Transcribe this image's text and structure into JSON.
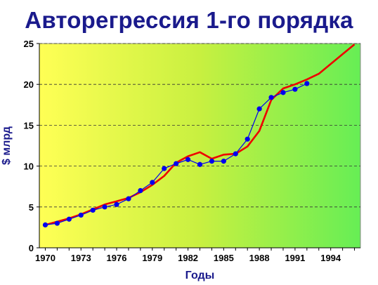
{
  "chart_data": {
    "type": "line",
    "title": "Авторегрессия 1-го порядка",
    "xlabel": "Годы",
    "ylabel": "$ млрд",
    "xlim": [
      1969.5,
      1996.5
    ],
    "ylim": [
      0,
      25
    ],
    "x_ticks": [
      "1970",
      "1973",
      "1976",
      "1979",
      "1982",
      "1985",
      "1988",
      "1991",
      "1994"
    ],
    "y_ticks": [
      "0",
      "5",
      "10",
      "15",
      "20",
      "25"
    ],
    "grid": "horizontal-dashed",
    "background": "gradient yellow-to-green",
    "series": [
      {
        "style": "blue line with circle markers",
        "color": "#0000ee",
        "x": [
          1970,
          1971,
          1972,
          1973,
          1974,
          1975,
          1976,
          1977,
          1978,
          1979,
          1980,
          1981,
          1982,
          1983,
          1984,
          1985,
          1986,
          1987,
          1988,
          1989,
          1990,
          1991,
          1992
        ],
        "y": [
          2.8,
          3.0,
          3.5,
          4.0,
          4.6,
          5.0,
          5.3,
          6.0,
          7.0,
          8.0,
          9.7,
          10.3,
          10.8,
          10.2,
          10.6,
          10.6,
          11.5,
          13.3,
          17.0,
          18.4,
          19.0,
          19.4,
          20.1
        ]
      },
      {
        "style": "red line",
        "color": "#ee0000",
        "x": [
          1970,
          1971,
          1972,
          1973,
          1974,
          1975,
          1976,
          1977,
          1978,
          1979,
          1980,
          1981,
          1982,
          1983,
          1984,
          1985,
          1986,
          1987,
          1988,
          1989,
          1990,
          1991,
          1992,
          1993,
          1994,
          1995,
          1996
        ],
        "y": [
          2.8,
          3.2,
          3.6,
          4.1,
          4.7,
          5.3,
          5.7,
          6.1,
          6.8,
          7.7,
          8.8,
          10.4,
          11.2,
          11.7,
          10.9,
          11.4,
          11.5,
          12.4,
          14.3,
          18.1,
          19.5,
          20.0,
          20.6,
          21.3,
          22.5,
          23.7,
          24.9
        ]
      }
    ]
  }
}
